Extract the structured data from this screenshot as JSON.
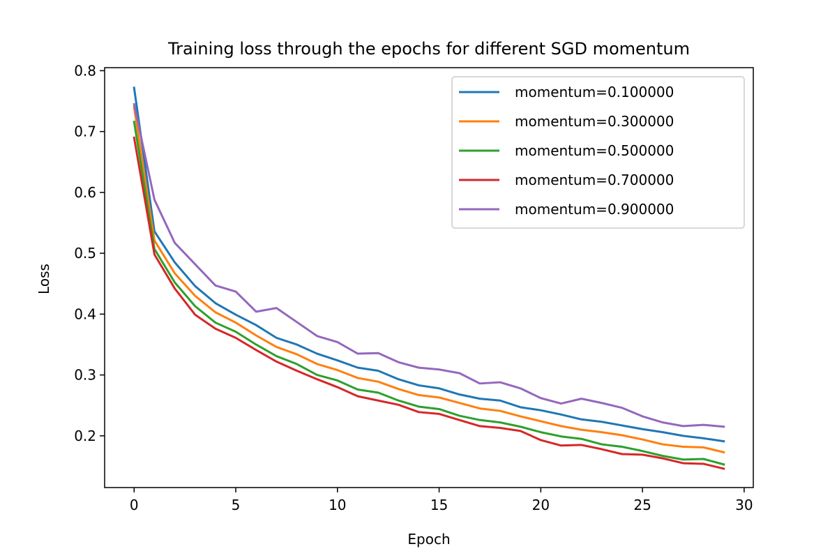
{
  "chart_data": {
    "type": "line",
    "title": "Training loss through the epochs for different SGD momentum",
    "xlabel": "Epoch",
    "ylabel": "Loss",
    "xlim": [
      -1.45,
      30.45
    ],
    "ylim": [
      0.115,
      0.805
    ],
    "x_ticks": [
      0,
      5,
      10,
      15,
      20,
      25,
      30
    ],
    "y_ticks": [
      0.2,
      0.3,
      0.4,
      0.5,
      0.6,
      0.7,
      0.8
    ],
    "x_tick_labels": [
      "0",
      "5",
      "10",
      "15",
      "20",
      "25",
      "30"
    ],
    "y_tick_labels": [
      "0.2",
      "0.3",
      "0.4",
      "0.5",
      "0.6",
      "0.7",
      "0.8"
    ],
    "grid": false,
    "legend_position": "top-right",
    "x": [
      0,
      1,
      2,
      3,
      4,
      5,
      6,
      7,
      8,
      9,
      10,
      11,
      12,
      13,
      14,
      15,
      16,
      17,
      18,
      19,
      20,
      21,
      22,
      23,
      24,
      25,
      26,
      27,
      28,
      29
    ],
    "series": [
      {
        "name": "momentum=0.100000",
        "color": "#1f77b4",
        "values": [
          0.772,
          0.536,
          0.485,
          0.446,
          0.418,
          0.399,
          0.382,
          0.361,
          0.35,
          0.335,
          0.324,
          0.312,
          0.307,
          0.293,
          0.283,
          0.278,
          0.268,
          0.261,
          0.258,
          0.247,
          0.242,
          0.235,
          0.227,
          0.223,
          0.217,
          0.211,
          0.206,
          0.2,
          0.196,
          0.191
        ]
      },
      {
        "name": "momentum=0.300000",
        "color": "#ff7f0e",
        "values": [
          0.74,
          0.521,
          0.467,
          0.43,
          0.403,
          0.386,
          0.365,
          0.346,
          0.334,
          0.318,
          0.308,
          0.295,
          0.289,
          0.277,
          0.267,
          0.263,
          0.254,
          0.245,
          0.241,
          0.232,
          0.224,
          0.216,
          0.21,
          0.206,
          0.201,
          0.194,
          0.186,
          0.182,
          0.181,
          0.173
        ]
      },
      {
        "name": "momentum=0.500000",
        "color": "#2ca02c",
        "values": [
          0.716,
          0.507,
          0.452,
          0.413,
          0.386,
          0.371,
          0.35,
          0.331,
          0.318,
          0.3,
          0.291,
          0.276,
          0.271,
          0.258,
          0.248,
          0.244,
          0.233,
          0.226,
          0.222,
          0.215,
          0.206,
          0.199,
          0.195,
          0.186,
          0.182,
          0.175,
          0.167,
          0.161,
          0.162,
          0.153
        ]
      },
      {
        "name": "momentum=0.700000",
        "color": "#d62728",
        "values": [
          0.69,
          0.498,
          0.442,
          0.399,
          0.376,
          0.361,
          0.341,
          0.322,
          0.307,
          0.293,
          0.28,
          0.265,
          0.258,
          0.251,
          0.239,
          0.236,
          0.226,
          0.216,
          0.213,
          0.208,
          0.193,
          0.184,
          0.185,
          0.178,
          0.17,
          0.169,
          0.163,
          0.155,
          0.154,
          0.146
        ]
      },
      {
        "name": "momentum=0.900000",
        "color": "#9467bd",
        "values": [
          0.745,
          0.588,
          0.517,
          0.482,
          0.447,
          0.437,
          0.404,
          0.41,
          0.387,
          0.364,
          0.354,
          0.335,
          0.336,
          0.321,
          0.312,
          0.309,
          0.303,
          0.286,
          0.288,
          0.278,
          0.262,
          0.253,
          0.261,
          0.254,
          0.246,
          0.232,
          0.222,
          0.216,
          0.218,
          0.215
        ]
      }
    ]
  }
}
